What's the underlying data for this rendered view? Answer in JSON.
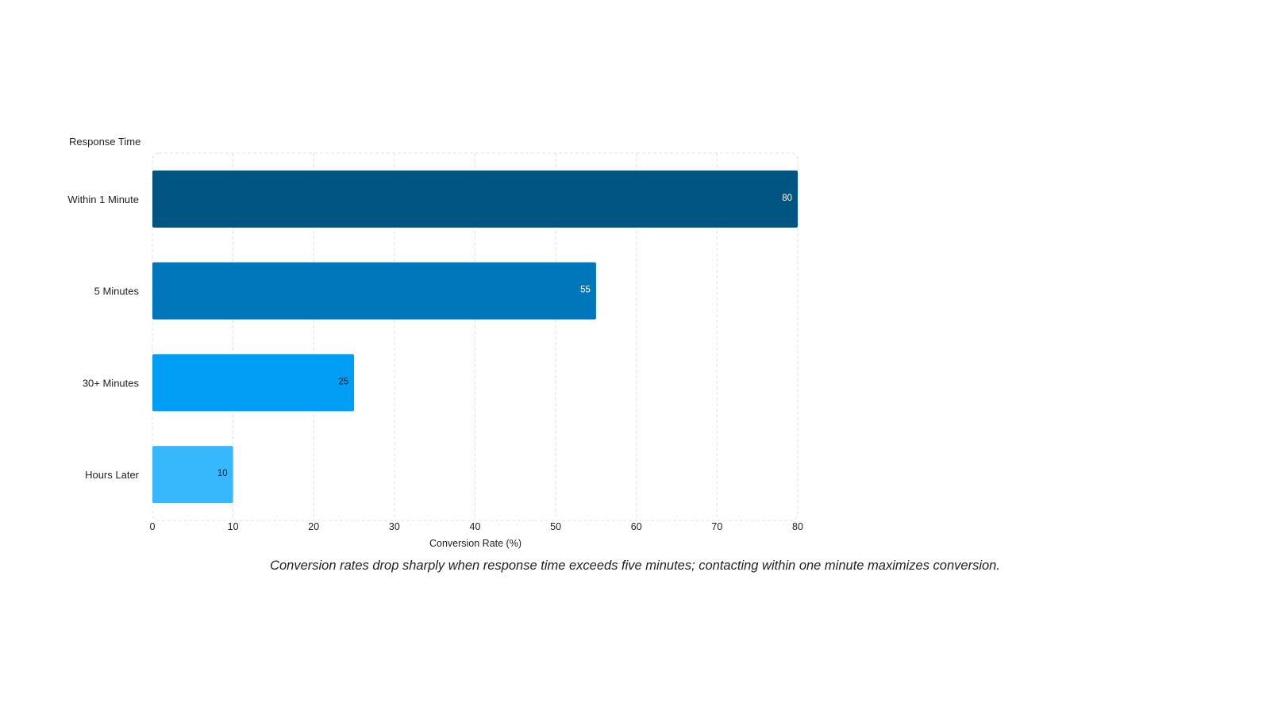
{
  "chart_data": {
    "type": "bar",
    "orientation": "horizontal",
    "categories": [
      "Within 1 Minute",
      "5 Minutes",
      "30+ Minutes",
      "Hours Later"
    ],
    "values": [
      80,
      55,
      25,
      10
    ],
    "colors": [
      "#005582",
      "#0077BB",
      "#009EF5",
      "#38B8FC"
    ],
    "label_colors": [
      "#ffffff",
      "#ffffff",
      "#111111",
      "#111111"
    ],
    "xlabel": "Conversion Rate (%)",
    "ylabel": "Response Time",
    "xlim": [
      0,
      80
    ],
    "xticks": [
      0,
      10,
      20,
      30,
      40,
      50,
      60,
      70,
      80
    ],
    "grid": true,
    "legend": "none"
  },
  "caption": "Conversion rates drop sharply when response time exceeds five minutes; contacting within one minute maximizes conversion."
}
